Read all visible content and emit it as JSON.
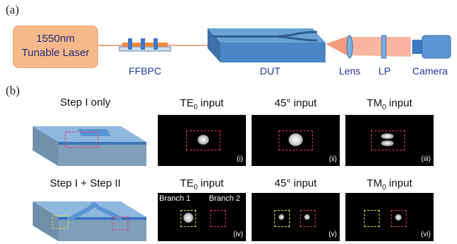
{
  "panel_a": {
    "label": "(a)",
    "laser": {
      "line1": "1550nm",
      "line2": "Tunable Laser"
    },
    "components": {
      "ffbpc": "FFBPC",
      "dut": "DUT",
      "lens": "Lens",
      "lp": "LP",
      "camera": "Camera"
    }
  },
  "panel_b": {
    "label": "(b)",
    "rows": [
      {
        "title": "Step I only",
        "images": [
          {
            "title_main": "TE",
            "title_sub": "0",
            "title_rest": " input",
            "roman": "(i)"
          },
          {
            "title_main": "45° input",
            "title_sub": "",
            "title_rest": "",
            "roman": "(ii)"
          },
          {
            "title_main": "TM",
            "title_sub": "0",
            "title_rest": " input",
            "roman": "(iii)"
          }
        ]
      },
      {
        "title": "Step I + Step II",
        "images": [
          {
            "title_main": "TE",
            "title_sub": "0",
            "title_rest": " input",
            "roman": "(iv)",
            "branch1": "Branch 1",
            "branch2": "Branch 2"
          },
          {
            "title_main": "45° input",
            "title_sub": "",
            "title_rest": "",
            "roman": "(v)"
          },
          {
            "title_main": "TM",
            "title_sub": "0",
            "title_rest": " input",
            "roman": "(vi)"
          }
        ]
      }
    ]
  },
  "colors": {
    "laser_box": "#f7b98a",
    "label_blue": "#1f3a9a",
    "waveguide": "#4f8fcf",
    "magenta_box": "#e0306a",
    "yellow_box": "#e6e033"
  }
}
